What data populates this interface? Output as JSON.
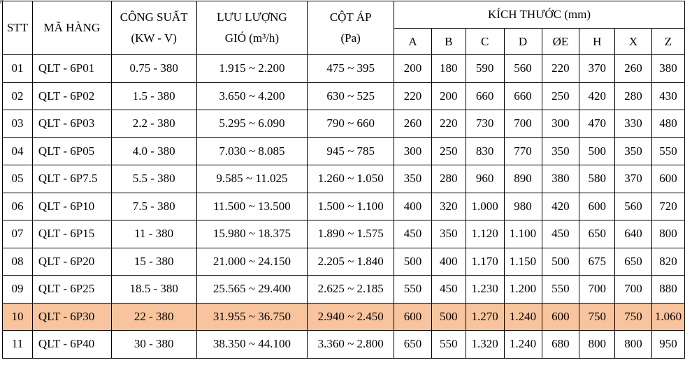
{
  "header": {
    "stt": "STT",
    "ma_hang": "MÃ HÀNG",
    "cong_suat": [
      "CÔNG SUẤT",
      "(KW - V)"
    ],
    "luu_luong": [
      "LƯU LƯỢNG",
      "GIÓ (m³/h)"
    ],
    "cot_ap": [
      "CỘT ÁP",
      "(Pa)"
    ],
    "kich_thuoc": "KÍCH THƯỚC (mm)",
    "dims": [
      "A",
      "B",
      "C",
      "D",
      "ØE",
      "H",
      "X",
      "Z"
    ]
  },
  "rows": [
    [
      "01",
      "QLT - 6P01",
      "0.75 - 380",
      "1.915 ~ 2.200",
      "475 ~ 395",
      "200",
      "180",
      "590",
      "560",
      "220",
      "370",
      "260",
      "380"
    ],
    [
      "02",
      "QLT - 6P02",
      "1.5 - 380",
      "3.650 ~ 4.200",
      "630 ~ 525",
      "220",
      "200",
      "660",
      "660",
      "250",
      "420",
      "280",
      "430"
    ],
    [
      "03",
      "QLT - 6P03",
      "2.2 - 380",
      "5.295 ~ 6.090",
      "790 ~ 660",
      "260",
      "220",
      "730",
      "700",
      "300",
      "470",
      "330",
      "480"
    ],
    [
      "04",
      "QLT - 6P05",
      "4.0  - 380",
      "7.030 ~ 8.085",
      "945 ~ 785",
      "300",
      "250",
      "830",
      "770",
      "350",
      "500",
      "350",
      "550"
    ],
    [
      "05",
      "QLT - 6P7.5",
      "5.5 - 380",
      "9.585 ~ 11.025",
      "1.260 ~ 1.050",
      "350",
      "280",
      "960",
      "890",
      "380",
      "580",
      "370",
      "600"
    ],
    [
      "06",
      "QLT - 6P10",
      "7.5 - 380",
      "11.500 ~ 13.500",
      "1.500 ~ 1.100",
      "400",
      "320",
      "1.000",
      "980",
      "420",
      "600",
      "560",
      "720"
    ],
    [
      "07",
      "QLT - 6P15",
      "11 - 380",
      "15.980 ~ 18.375",
      "1.890 ~ 1.575",
      "450",
      "350",
      "1.120",
      "1.100",
      "450",
      "650",
      "640",
      "800"
    ],
    [
      "08",
      "QLT - 6P20",
      "15 - 380",
      "21.000 ~ 24.150",
      "2.205 ~ 1.840",
      "500",
      "400",
      "1.170",
      "1.150",
      "500",
      "675",
      "650",
      "820"
    ],
    [
      "09",
      "QLT - 6P25",
      "18.5 - 380",
      "25.565 ~ 29.400",
      "2.625 ~ 2.185",
      "550",
      "450",
      "1.230",
      "1.200",
      "550",
      "700",
      "700",
      "880"
    ],
    [
      "10",
      "QLT - 6P30",
      "22 - 380",
      "31.955 ~ 36.750",
      "2.940 ~ 2.450",
      "600",
      "500",
      "1.270",
      "1.240",
      "600",
      "750",
      "750",
      "1.060"
    ],
    [
      "11",
      "QLT - 6P40",
      "30 - 380",
      "38.350 ~ 44.100",
      "3.360 ~ 2.800",
      "650",
      "550",
      "1.320",
      "1.240",
      "680",
      "800",
      "800",
      "950"
    ]
  ],
  "highlight_row_index": 9,
  "colors": {
    "highlight": "#f8c49d",
    "border": "#000000"
  }
}
